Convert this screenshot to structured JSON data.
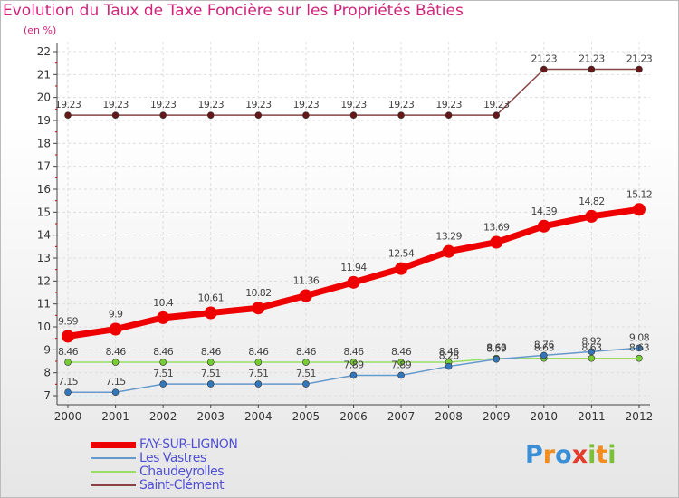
{
  "title": "Evolution du Taux de Taxe Foncière sur les Propriétés Bâties",
  "subtitle": "(en %)",
  "logo_text": "Proxiti",
  "chart_data": {
    "type": "line",
    "title": "Evolution du Taux de Taxe Foncière sur les Propriétés Bâties",
    "subtitle": "(en %)",
    "xlabel": "",
    "ylabel": "",
    "ylim": [
      7,
      22
    ],
    "yticks": [
      7,
      8,
      9,
      10,
      11,
      12,
      13,
      14,
      15,
      16,
      17,
      18,
      19,
      20,
      21,
      22
    ],
    "x": [
      "2000",
      "2001",
      "2002",
      "2003",
      "2004",
      "2005",
      "2006",
      "2007",
      "2008",
      "2009",
      "2010",
      "2011",
      "2012"
    ],
    "grid": true,
    "legend_position": "bottom-left",
    "series": [
      {
        "name": "FAY-SUR-LIGNON",
        "color": "#ee0000",
        "marker": "#ee0000",
        "width": 7,
        "values": [
          9.59,
          9.9,
          10.4,
          10.61,
          10.82,
          11.36,
          11.94,
          12.54,
          13.29,
          13.69,
          14.39,
          14.82,
          15.12
        ],
        "labels": [
          "9.59",
          "9.9",
          "10.4",
          "10.61",
          "10.82",
          "11.36",
          "11.94",
          "12.54",
          "13.29",
          "13.69",
          "14.39",
          "14.82",
          "15.12"
        ]
      },
      {
        "name": "Les Vastres",
        "color": "#6699cc",
        "marker": "#3377bb",
        "width": 1.5,
        "values": [
          7.15,
          7.15,
          7.51,
          7.51,
          7.51,
          7.51,
          7.89,
          7.89,
          8.28,
          8.59,
          8.76,
          8.92,
          9.08
        ],
        "labels": [
          "7.15",
          "7.15",
          "7.51",
          "7.51",
          "7.51",
          "7.51",
          "7.89",
          "7.89",
          "8.28",
          "8.59",
          "8.76",
          "8.92",
          "9.08"
        ]
      },
      {
        "name": "Chaudeyrolles",
        "color": "#99dd66",
        "marker": "#77cc33",
        "width": 1.5,
        "values": [
          8.46,
          8.46,
          8.46,
          8.46,
          8.46,
          8.46,
          8.46,
          8.46,
          8.46,
          8.63,
          8.63,
          8.63,
          8.63
        ],
        "labels": [
          "8.46",
          "8.46",
          "8.46",
          "8.46",
          "8.46",
          "8.46",
          "8.46",
          "8.46",
          "8.46",
          "8.63",
          "8.63",
          "8.63",
          "8.63"
        ]
      },
      {
        "name": "Saint-Clément",
        "color": "#884444",
        "marker": "#661818",
        "width": 1.5,
        "values": [
          19.23,
          19.23,
          19.23,
          19.23,
          19.23,
          19.23,
          19.23,
          19.23,
          19.23,
          19.23,
          21.23,
          21.23,
          21.23
        ],
        "labels": [
          "19.23",
          "19.23",
          "19.23",
          "19.23",
          "19.23",
          "19.23",
          "19.23",
          "19.23",
          "19.23",
          "19.23",
          "21.23",
          "21.23",
          "21.23"
        ]
      }
    ]
  }
}
